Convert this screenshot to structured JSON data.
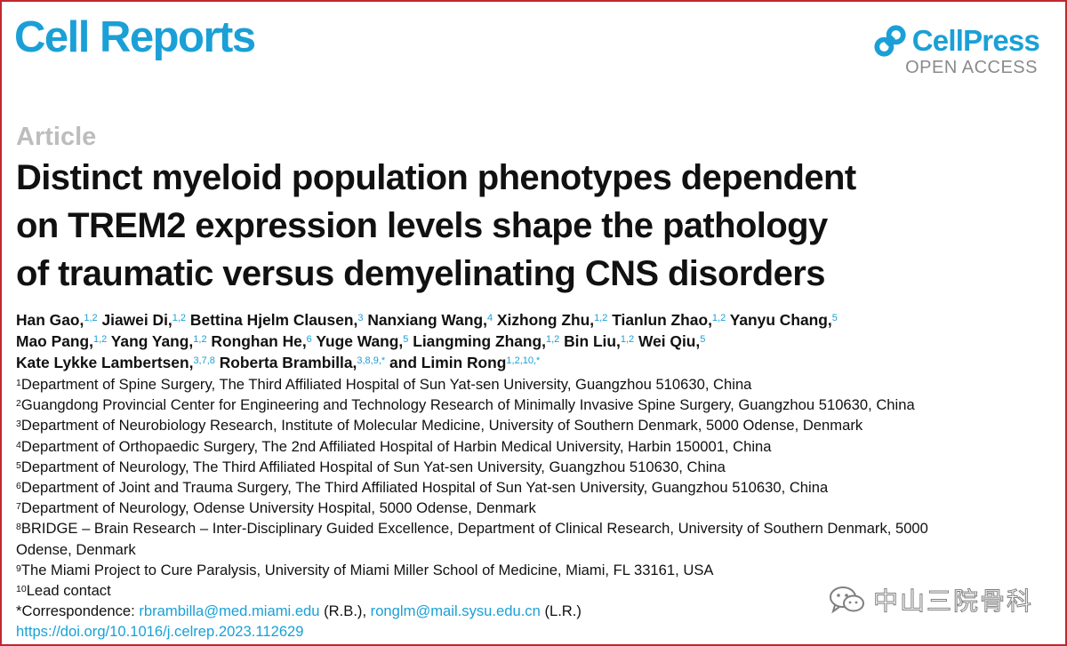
{
  "header": {
    "journal": "Cell Reports",
    "publisher": "CellPress",
    "access": "OPEN ACCESS"
  },
  "article": {
    "type": "Article",
    "title_lines": [
      "Distinct myeloid population phenotypes dependent",
      "on TREM2 expression levels shape the pathology",
      "of traumatic versus demyelinating CNS disorders"
    ]
  },
  "authors": [
    [
      {
        "name": "Han Gao,",
        "sup": "1,2"
      },
      {
        "name": "Jiawei Di,",
        "sup": "1,2"
      },
      {
        "name": "Bettina Hjelm Clausen,",
        "sup": "3"
      },
      {
        "name": "Nanxiang Wang,",
        "sup": "4"
      },
      {
        "name": "Xizhong Zhu,",
        "sup": "1,2"
      },
      {
        "name": "Tianlun Zhao,",
        "sup": "1,2"
      },
      {
        "name": "Yanyu Chang,",
        "sup": "5"
      }
    ],
    [
      {
        "name": "Mao Pang,",
        "sup": "1,2"
      },
      {
        "name": "Yang Yang,",
        "sup": "1,2"
      },
      {
        "name": "Ronghan He,",
        "sup": "6"
      },
      {
        "name": "Yuge Wang,",
        "sup": "5"
      },
      {
        "name": "Liangming Zhang,",
        "sup": "1,2"
      },
      {
        "name": "Bin Liu,",
        "sup": "1,2"
      },
      {
        "name": "Wei Qiu,",
        "sup": "5"
      }
    ],
    [
      {
        "name": "Kate Lykke Lambertsen,",
        "sup": "3,7,8"
      },
      {
        "name": "Roberta Brambilla,",
        "sup": "3,8,9,*"
      },
      {
        "name": "and Limin Rong",
        "sup": "1,2,10,*"
      }
    ]
  ],
  "affiliations": [
    {
      "num": "1",
      "text": "Department of Spine Surgery, The Third Affiliated Hospital of Sun Yat-sen University, Guangzhou 510630, China"
    },
    {
      "num": "2",
      "text": "Guangdong Provincial Center for Engineering and Technology Research of Minimally Invasive Spine Surgery, Guangzhou 510630, China"
    },
    {
      "num": "3",
      "text": "Department of Neurobiology Research, Institute of Molecular Medicine, University of Southern Denmark, 5000 Odense, Denmark"
    },
    {
      "num": "4",
      "text": "Department of Orthopaedic Surgery, The 2nd Affiliated Hospital of Harbin Medical University, Harbin 150001, China"
    },
    {
      "num": "5",
      "text": "Department of Neurology, The Third Affiliated Hospital of Sun Yat-sen University, Guangzhou 510630, China"
    },
    {
      "num": "6",
      "text": "Department of Joint and Trauma Surgery, The Third Affiliated Hospital of Sun Yat-sen University, Guangzhou 510630, China"
    },
    {
      "num": "7",
      "text": "Department of Neurology, Odense University Hospital, 5000 Odense, Denmark"
    },
    {
      "num": "8",
      "text": "BRIDGE – Brain Research – Inter-Disciplinary Guided Excellence, Department of Clinical Research, University of Southern Denmark, 5000",
      "cont": "Odense, Denmark"
    },
    {
      "num": "9",
      "text": "The Miami Project to Cure Paralysis, University of Miami Miller School of Medicine, Miami, FL 33161, USA"
    },
    {
      "num": "10",
      "text": "Lead contact"
    }
  ],
  "correspondence": {
    "label": "*Correspondence: ",
    "email1": "rbrambilla@med.miami.edu",
    "after1": " (R.B.), ",
    "email2": "ronglm@mail.sysu.edu.cn",
    "after2": " (L.R.)"
  },
  "doi": "https://doi.org/10.1016/j.celrep.2023.112629",
  "watermark": {
    "text": "中山三院骨科",
    "icon": "wechat-icon"
  }
}
